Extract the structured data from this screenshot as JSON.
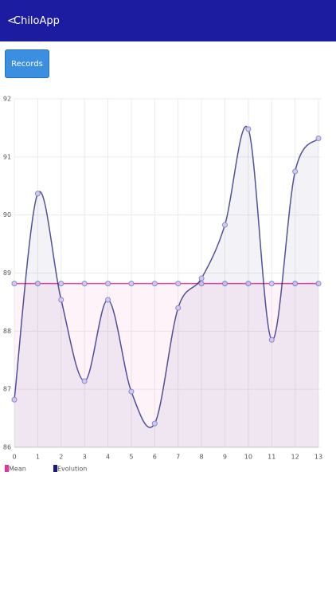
{
  "header": {
    "back": "<",
    "title": "ChiloApp"
  },
  "button": "Records",
  "chart_data": {
    "type": "line",
    "x": [
      0,
      1,
      2,
      3,
      4,
      5,
      6,
      7,
      8,
      9,
      10,
      11,
      12,
      13
    ],
    "xlim": [
      0,
      13
    ],
    "xticks": [
      0,
      1,
      2,
      3,
      4,
      5,
      6,
      7,
      8,
      9,
      10,
      11,
      12,
      13
    ],
    "ylim": [
      86,
      92
    ],
    "yticks": [
      86,
      87,
      88,
      89,
      90,
      91,
      92
    ],
    "grid": true,
    "series": [
      {
        "name": "Mean",
        "color": "#e0359e",
        "values": [
          88.82,
          88.82,
          88.82,
          88.82,
          88.82,
          88.82,
          88.82,
          88.82,
          88.82,
          88.82,
          88.82,
          88.82,
          88.82,
          88.82
        ]
      },
      {
        "name": "Evolution",
        "color": "#1a1a7a",
        "values": [
          86.82,
          90.37,
          88.54,
          87.14,
          88.54,
          86.96,
          86.41,
          88.4,
          88.91,
          89.83,
          91.48,
          87.85,
          90.75,
          91.32
        ]
      }
    ]
  }
}
